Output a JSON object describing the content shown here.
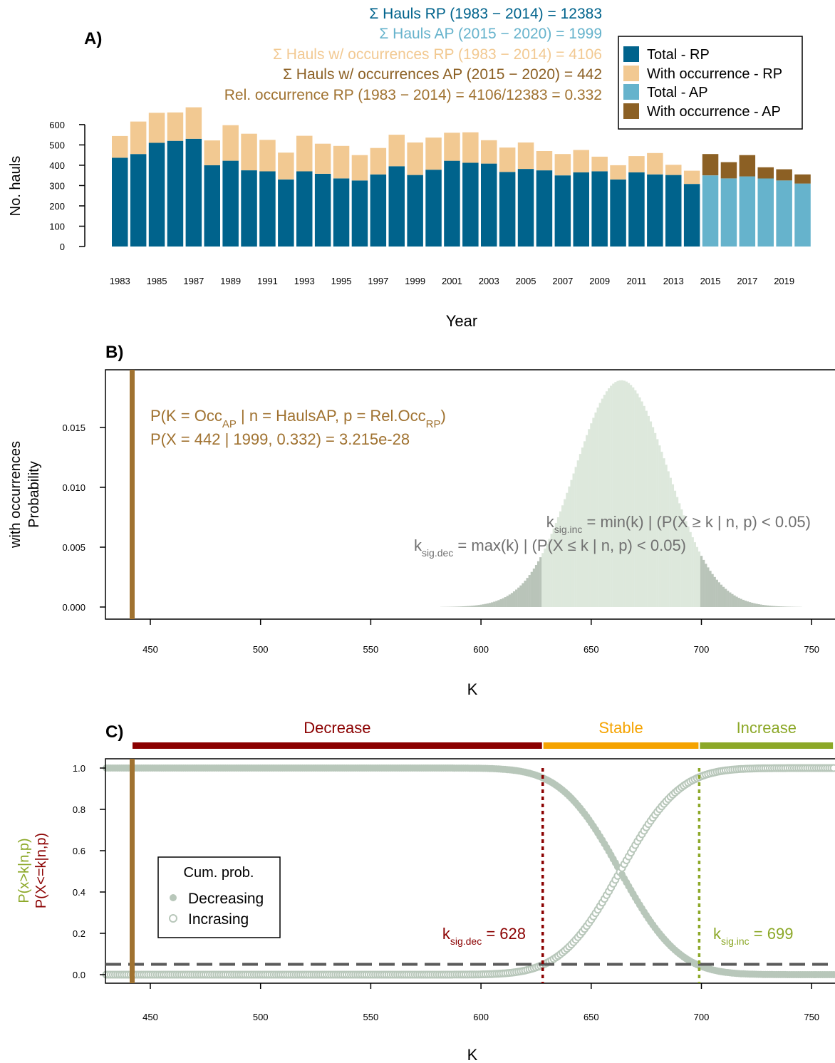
{
  "colors": {
    "total_rp": "#00638C",
    "occ_rp": "#F2C992",
    "total_ap": "#66B3CC",
    "occ_ap": "#8C6024",
    "occ_line": "#A07230",
    "dist_fill": "#DDE8DC",
    "tail_fill": "#B9C4B9",
    "curve": "#B8C7BA",
    "decrease": "#8B0000",
    "stable": "#F5A300",
    "increase": "#8CA828",
    "grey_text": "#707070",
    "axis": "#000000"
  },
  "chart_data": [
    {
      "id": "A",
      "type": "bar",
      "panel_label": "A)",
      "ylabel": "No. hauls",
      "xlabel": "Year",
      "ylim": [
        0,
        600
      ],
      "yticks": [
        0,
        100,
        200,
        300,
        400,
        500,
        600
      ],
      "categories": [
        "1983",
        "1984",
        "1985",
        "1986",
        "1987",
        "1988",
        "1989",
        "1990",
        "1991",
        "1992",
        "1993",
        "1994",
        "1995",
        "1996",
        "1997",
        "1998",
        "1999",
        "2000",
        "2001",
        "2002",
        "2003",
        "2004",
        "2005",
        "2006",
        "2007",
        "2008",
        "2009",
        "2010",
        "2011",
        "2012",
        "2013",
        "2014",
        "2015",
        "2016",
        "2017",
        "2018",
        "2019",
        "2020"
      ],
      "xtick_labels": [
        "1983",
        "1985",
        "1987",
        "1989",
        "1991",
        "1993",
        "1995",
        "1997",
        "1999",
        "2001",
        "2003",
        "2005",
        "2007",
        "2009",
        "2011",
        "2013",
        "2015",
        "2017",
        "2019"
      ],
      "series": [
        {
          "name": "Total - RP",
          "color_key": "total_rp",
          "values": [
            437,
            455,
            510,
            520,
            530,
            400,
            422,
            375,
            370,
            330,
            370,
            358,
            335,
            325,
            355,
            395,
            352,
            378,
            422,
            412,
            408,
            367,
            382,
            375,
            350,
            365,
            370,
            330,
            365,
            355,
            352,
            308,
            null,
            null,
            null,
            null,
            null,
            null
          ]
        },
        {
          "name": "With occurrence - RP",
          "color_key": "occ_rp",
          "values": [
            107,
            160,
            148,
            140,
            155,
            122,
            175,
            180,
            155,
            132,
            175,
            148,
            160,
            125,
            130,
            155,
            160,
            158,
            138,
            150,
            115,
            120,
            130,
            95,
            105,
            110,
            72,
            70,
            80,
            105,
            50,
            65,
            null,
            null,
            null,
            null,
            null,
            null
          ]
        },
        {
          "name": "Total - AP",
          "color_key": "total_ap",
          "values": [
            null,
            null,
            null,
            null,
            null,
            null,
            null,
            null,
            null,
            null,
            null,
            null,
            null,
            null,
            null,
            null,
            null,
            null,
            null,
            null,
            null,
            null,
            null,
            null,
            null,
            null,
            null,
            null,
            null,
            null,
            null,
            null,
            350,
            335,
            345,
            335,
            325,
            310
          ]
        },
        {
          "name": "With occurrence - AP",
          "color_key": "occ_ap",
          "values": [
            null,
            null,
            null,
            null,
            null,
            null,
            null,
            null,
            null,
            null,
            null,
            null,
            null,
            null,
            null,
            null,
            null,
            null,
            null,
            null,
            null,
            null,
            null,
            null,
            null,
            null,
            null,
            null,
            null,
            null,
            null,
            null,
            105,
            80,
            105,
            55,
            55,
            45
          ]
        }
      ],
      "legend_position": "top-right",
      "annotations": [
        {
          "text": "Σ Hauls RP (1983 − 2014) = 12383",
          "color_key": "total_rp"
        },
        {
          "text": "Σ Hauls AP (2015 − 2020) = 1999",
          "color_key": "total_ap"
        },
        {
          "text": "Σ Hauls w/ occurrences RP (1983 − 2014) = 4106",
          "color_key": "occ_rp"
        },
        {
          "text": "Σ Hauls w/ occurrences AP (2015 − 2020) = 442",
          "color_key": "occ_ap"
        },
        {
          "text": "Rel. occurrence RP (1983 − 2014) = 4106/12383 = 0.332",
          "color_key": "occ_line"
        }
      ]
    },
    {
      "id": "B",
      "type": "bar",
      "panel_label": "B)",
      "ylabel": [
        "with occurrences",
        "Probability"
      ],
      "xlabel": "K",
      "xlim": [
        430,
        760
      ],
      "ylim": [
        0,
        0.019
      ],
      "xticks": [
        450,
        500,
        550,
        600,
        650,
        700,
        750
      ],
      "yticks": [
        "0.000",
        "0.005",
        "0.010",
        "0.015"
      ],
      "distribution": {
        "kind": "binomial",
        "n": 1999,
        "p": 0.332,
        "k_min": 582,
        "k_max": 745
      },
      "observed_k": 442,
      "k_sig_dec": 628,
      "k_sig_inc": 699,
      "annotations": {
        "formula_1": {
          "p_open": "P(K = Occ",
          "sub_1": "AP",
          "mid": " | n = HaulsAP, p = Rel.Occ",
          "sub_2": "RP",
          "close": ")"
        },
        "formula_2": "P(X = 442 | 1999, 0.332) = 3.215e-28",
        "inc": {
          "k": "k",
          "sub": "sig.inc",
          "rest": " = min(k) | (P(X ≥ k | n, p) < 0.05)"
        },
        "dec": {
          "k": "k",
          "sub": "sig.dec",
          "rest": " = max(k) | (P(X ≤ k | n, p) < 0.05)"
        }
      }
    },
    {
      "id": "C",
      "type": "scatter",
      "panel_label": "C)",
      "ylabel_1": "P(x>k|n,p)",
      "ylabel_2": "P(X<=k|n,p)",
      "xlabel": "K",
      "xlim": [
        430,
        760
      ],
      "ylim": [
        0,
        1
      ],
      "xticks": [
        450,
        500,
        550,
        600,
        650,
        700,
        750
      ],
      "yticks": [
        "0.0",
        "0.2",
        "0.4",
        "0.6",
        "0.8",
        "1.0"
      ],
      "series": [
        {
          "name": "Decreasing",
          "marker": "filled-circle",
          "function": "P(x>k|n,p)",
          "k_range": [
            430,
            760
          ]
        },
        {
          "name": "Incrasing",
          "marker": "open-circle",
          "function": "P(X<=k|n,p)",
          "k_range": [
            430,
            760
          ]
        }
      ],
      "threshold": 0.05,
      "observed_k": 442,
      "k_sig_dec": 628,
      "k_sig_inc": 699,
      "zones": [
        {
          "label": "Decrease",
          "from": 442,
          "to": 628,
          "color_key": "decrease"
        },
        {
          "label": "Stable",
          "from": 628,
          "to": 699,
          "color_key": "stable"
        },
        {
          "label": "Increase",
          "from": 699,
          "to": 760,
          "color_key": "increase"
        }
      ],
      "legend_title": "Cum. prob.",
      "legend_position": "bottom-left",
      "label_dec": {
        "k": "k",
        "sub": "sig.dec",
        "rest": " = 628"
      },
      "label_inc": {
        "k": "k",
        "sub": "sig.inc",
        "rest": " = 699"
      }
    }
  ]
}
